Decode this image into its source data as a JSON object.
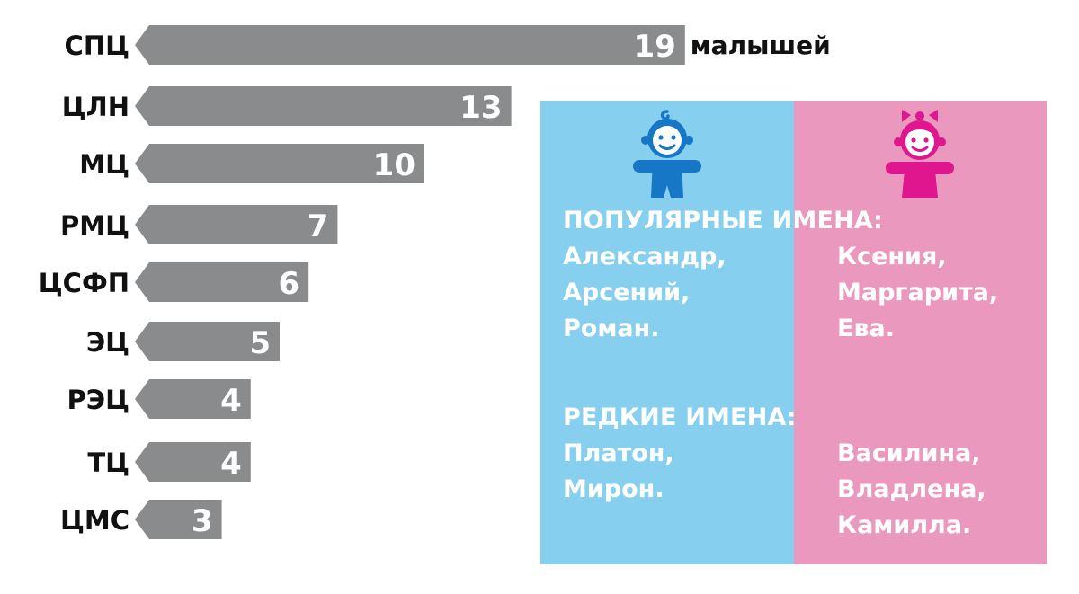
{
  "chart_data": {
    "type": "bar",
    "orientation": "horizontal",
    "categories": [
      "СПЦ",
      "ЦЛН",
      "МЦ",
      "РМЦ",
      "ЦСФП",
      "ЭЦ",
      "РЭЦ",
      "ТЦ",
      "ЦМС"
    ],
    "values": [
      19,
      13,
      10,
      7,
      6,
      5,
      4,
      4,
      3
    ],
    "value_unit_label": "малышей",
    "bar_color": "#8a8b8d",
    "title": "",
    "xlabel": "",
    "ylabel": ""
  },
  "names": {
    "popular_heading": "ПОПУЛЯРНЫЕ ИМЕНА:",
    "rare_heading": "РЕДКИЕ ИМЕНА:",
    "boys_popular": [
      "Александр,",
      "Арсений,",
      "Роман."
    ],
    "girls_popular": [
      "Ксения,",
      "Маргарита,",
      "Ева."
    ],
    "boys_rare": [
      "Платон,",
      "Мирон."
    ],
    "girls_rare": [
      "Василина,",
      "Владлена,",
      "Камилла."
    ],
    "boy_icon": "baby-boy-icon",
    "girl_icon": "baby-girl-icon"
  },
  "colors": {
    "boys_panel": "#87cfef",
    "girls_panel": "#ea98bd",
    "boy_icon": "#1677c6",
    "girl_icon": "#e0168e",
    "text_on_panel": "#ffffff"
  }
}
